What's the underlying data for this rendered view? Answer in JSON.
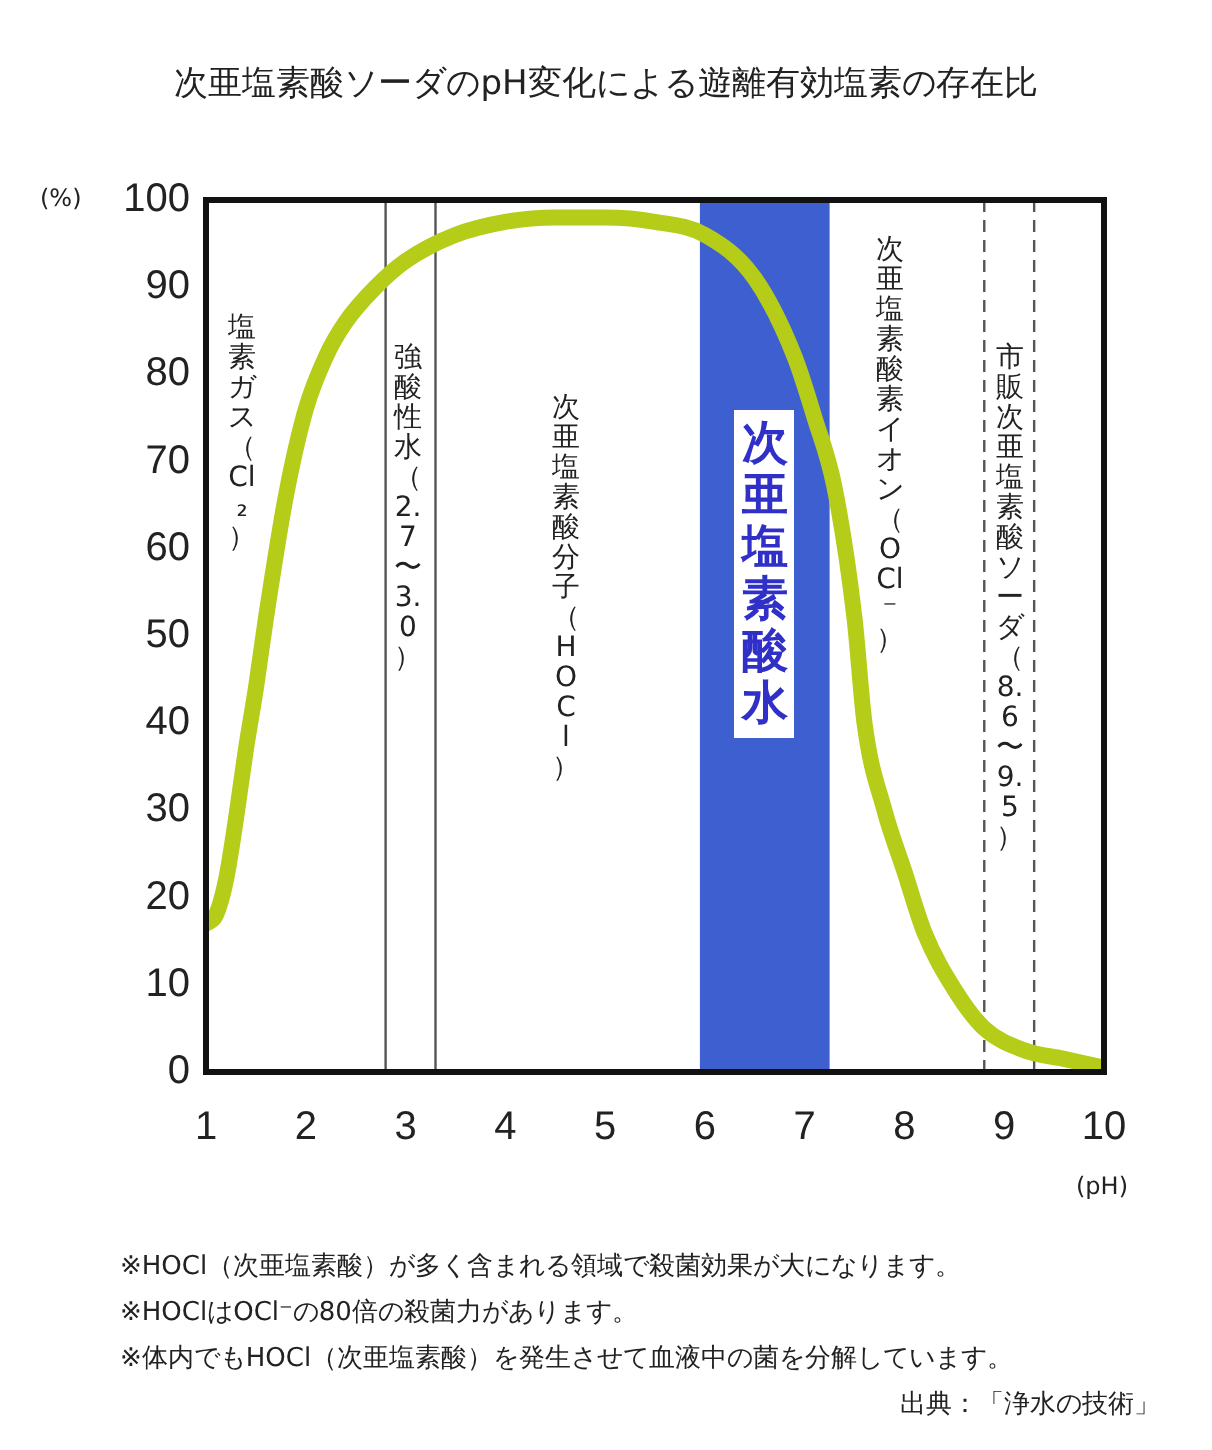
{
  "chart_data": {
    "type": "line",
    "title": "次亜塩素酸ソーダのpH変化による遊離有効塩素の存在比",
    "xlabel": "(pH)",
    "ylabel": "(%)",
    "x": [
      1,
      1.1,
      1.2,
      1.3,
      1.4,
      1.5,
      1.6,
      1.8,
      2,
      2.2,
      2.4,
      2.7,
      3,
      3.5,
      4,
      4.5,
      5,
      5.5,
      6,
      6.5,
      6.9,
      7.1,
      7.3,
      7.5,
      7.6,
      7.8,
      8,
      8.2,
      8.5,
      8.8,
      9.2,
      9.6,
      10
    ],
    "series": [
      {
        "color": "#b5cc18",
        "values": [
          17,
          18,
          22,
          29,
          37,
          44,
          52,
          66,
          76,
          82,
          86,
          90,
          93,
          96,
          97.5,
          98,
          98,
          97.5,
          96,
          91,
          82,
          75,
          67,
          52,
          40,
          30,
          23,
          16,
          9.5,
          5,
          2.5,
          1.5,
          0.5
        ]
      }
    ],
    "xlim": [
      1,
      10
    ],
    "xticks": [
      1,
      2,
      3,
      4,
      5,
      6,
      7,
      8,
      9,
      10
    ],
    "ylim": [
      0,
      100
    ],
    "yticks": [
      0,
      10,
      20,
      30,
      40,
      50,
      60,
      70,
      80,
      90,
      100
    ],
    "grid": false,
    "marker": "none",
    "line_style": "solid",
    "bands": [
      {
        "axis": "x",
        "from": 5.95,
        "to": 7.25,
        "label": "次亜塩素酸水",
        "color": "#3d5fcf"
      }
    ],
    "ref_lines": [
      {
        "axis": "x",
        "value": 2.8,
        "color": "#555555",
        "line_style": "solid"
      },
      {
        "axis": "x",
        "value": 3.3,
        "color": "#555555",
        "line_style": "solid"
      },
      {
        "axis": "x",
        "value": 8.8,
        "color": "#555555",
        "line_style": "dashed"
      },
      {
        "axis": "x",
        "value": 9.3,
        "color": "#555555",
        "line_style": "dashed"
      }
    ],
    "annotations": [
      "塩素ガス（Cl₂）",
      "強酸性水（2.7〜3.0）",
      "次亜塩素酸分子（HOCl）",
      "次亜塩素酸素イオン（OCl⁻）",
      "市販次亜塩素酸ソーダ（8.6〜9.5）",
      "※HOCl（次亜塩素酸）が多く含まれる領域で殺菌効果が大になります。",
      "※HOClはOCl⁻の80倍の殺菌力があります。",
      "※体内でもHOCl（次亜塩素酸）を発生させて血液中の菌を分解しています。",
      "出典：「浄水の技術」"
    ]
  }
}
